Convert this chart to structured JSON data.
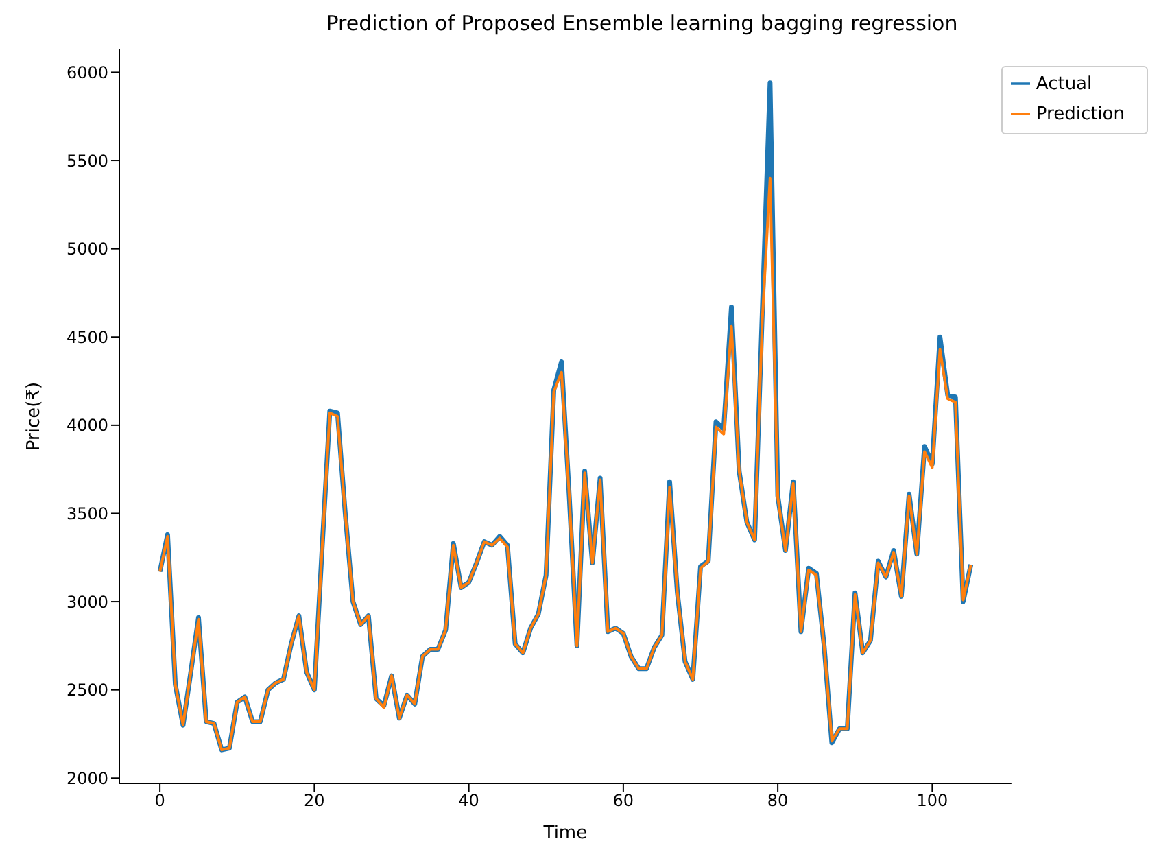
{
  "chart_data": {
    "type": "line",
    "title": "Prediction of Proposed Ensemble learning bagging regression",
    "xlabel": "Time",
    "ylabel": "Price(₹)",
    "x": [
      0,
      1,
      2,
      3,
      4,
      5,
      6,
      7,
      8,
      9,
      10,
      11,
      12,
      13,
      14,
      15,
      16,
      17,
      18,
      19,
      20,
      21,
      22,
      23,
      24,
      25,
      26,
      27,
      28,
      29,
      30,
      31,
      32,
      33,
      34,
      35,
      36,
      37,
      38,
      39,
      40,
      41,
      42,
      43,
      44,
      45,
      46,
      47,
      48,
      49,
      50,
      51,
      52,
      53,
      54,
      55,
      56,
      57,
      58,
      59,
      60,
      61,
      62,
      63,
      64,
      65,
      66,
      67,
      68,
      69,
      70,
      71,
      72,
      73,
      74,
      75,
      76,
      77,
      78,
      79,
      80,
      81,
      82,
      83,
      84,
      85,
      86,
      87,
      88,
      89,
      90,
      91,
      92,
      93,
      94,
      95,
      96,
      97,
      98,
      99,
      100,
      101,
      102,
      103,
      104,
      105
    ],
    "series": [
      {
        "name": "Actual",
        "color": "#1f77b4",
        "values": [
          3170,
          3380,
          2530,
          2300,
          2600,
          2910,
          2320,
          2310,
          2160,
          2170,
          2430,
          2460,
          2320,
          2320,
          2500,
          2540,
          2560,
          2760,
          2920,
          2600,
          2500,
          3300,
          4080,
          4070,
          3500,
          3000,
          2870,
          2920,
          2450,
          2410,
          2580,
          2340,
          2470,
          2420,
          2690,
          2730,
          2730,
          2840,
          3330,
          3080,
          3110,
          3220,
          3340,
          3320,
          3370,
          3320,
          2760,
          2710,
          2850,
          2930,
          3150,
          4200,
          4360,
          3600,
          2750,
          3740,
          3220,
          3700,
          2830,
          2850,
          2820,
          2690,
          2620,
          2620,
          2740,
          2810,
          3680,
          3050,
          2660,
          2560,
          3200,
          3230,
          4020,
          3980,
          4670,
          3740,
          3450,
          3350,
          4650,
          5940,
          3600,
          3290,
          3680,
          2830,
          3190,
          3160,
          2750,
          2200,
          2280,
          2280,
          3050,
          2710,
          2780,
          3230,
          3140,
          3290,
          3030,
          3610,
          3270,
          3880,
          3780,
          4500,
          4170,
          4160,
          3000,
          3210
        ]
      },
      {
        "name": "Prediction",
        "color": "#ff7f0e",
        "values": [
          3170,
          3370,
          2530,
          2300,
          2600,
          2900,
          2320,
          2310,
          2160,
          2170,
          2430,
          2460,
          2320,
          2320,
          2500,
          2540,
          2560,
          2760,
          2920,
          2600,
          2500,
          3300,
          4070,
          4050,
          3500,
          3000,
          2870,
          2920,
          2450,
          2400,
          2580,
          2340,
          2470,
          2420,
          2690,
          2730,
          2730,
          2840,
          3320,
          3080,
          3110,
          3220,
          3340,
          3320,
          3360,
          3310,
          2760,
          2710,
          2850,
          2930,
          3150,
          4190,
          4300,
          3600,
          2750,
          3730,
          3220,
          3690,
          2830,
          2850,
          2820,
          2690,
          2620,
          2620,
          2740,
          2810,
          3650,
          3050,
          2660,
          2560,
          3190,
          3230,
          3990,
          3950,
          4560,
          3740,
          3450,
          3350,
          4600,
          5400,
          3590,
          3290,
          3670,
          2830,
          3180,
          3150,
          2750,
          2210,
          2280,
          2280,
          3040,
          2710,
          2780,
          3220,
          3140,
          3280,
          3030,
          3600,
          3270,
          3850,
          3760,
          4430,
          4150,
          4130,
          3010,
          3210
        ]
      }
    ],
    "xlim": [
      -5.25,
      110.25
    ],
    "xticks": [
      0,
      20,
      40,
      60,
      80,
      100
    ],
    "ylim": [
      1970,
      6130
    ],
    "yticks": [
      2000,
      2500,
      3000,
      3500,
      4000,
      4500,
      5000,
      5500,
      6000
    ],
    "grid": false,
    "legend": "top right",
    "marker": "none",
    "line_style": "solid"
  }
}
